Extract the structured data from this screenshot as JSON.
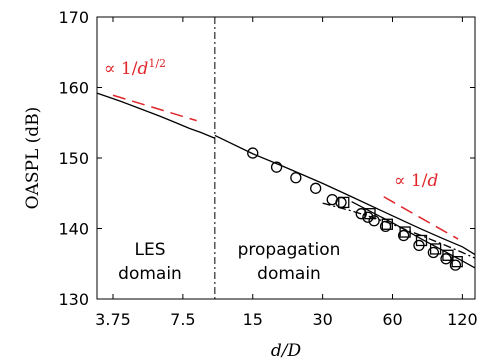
{
  "chart_data": {
    "type": "scatter",
    "xscale": "log",
    "xlabel": "d/D",
    "ylabel": "OASPL (dB)",
    "xlim": [
      3.2,
      136
    ],
    "ylim": [
      130,
      170
    ],
    "xticks": [
      3.75,
      7.5,
      15,
      30,
      60,
      120
    ],
    "xtick_labels": [
      "3.75",
      "7.5",
      "15",
      "30",
      "60",
      "120"
    ],
    "yticks": [
      130,
      140,
      150,
      160,
      170
    ],
    "grid": false,
    "divider_x": 10.3,
    "region_labels": {
      "les": [
        "LES",
        "domain"
      ],
      "propagation": [
        "propagation",
        "domain"
      ]
    },
    "annotations": {
      "inverse_sqrt": {
        "prefix": "∝ 1/",
        "base": "d",
        "exponent": "1/2",
        "color": "#e0262b"
      },
      "inverse": {
        "prefix": "∝ 1/",
        "base": "d",
        "color": "#e0262b"
      }
    },
    "series": [
      {
        "kind": "line",
        "style": "solid",
        "color": "#000000",
        "x": [
          3.2,
          4,
          5,
          6,
          7,
          8,
          9,
          10.3
        ],
        "y": [
          159.2,
          158.1,
          156.9,
          155.9,
          155.0,
          154.2,
          153.6,
          152.8
        ]
      },
      {
        "kind": "line",
        "style": "solid",
        "color": "#000000",
        "x": [
          10.3,
          15,
          20,
          30,
          40,
          60,
          80,
          100,
          120,
          136
        ],
        "y": [
          153.2,
          150.6,
          148.9,
          146.4,
          144.5,
          141.8,
          139.9,
          138.5,
          137.4,
          136.3
        ]
      },
      {
        "kind": "line",
        "style": "solid",
        "color": "#000000",
        "x": [
          40,
          60,
          80,
          100,
          120,
          136
        ],
        "y": [
          143.8,
          140.8,
          138.5,
          136.8,
          135.4,
          134.4
        ]
      },
      {
        "kind": "line",
        "style": "dashdot",
        "color": "#000000",
        "x": [
          30,
          40,
          50,
          60,
          70,
          80,
          90,
          100,
          120,
          136
        ],
        "y": [
          143.6,
          142.5,
          141.5,
          140.6,
          139.7,
          139.0,
          138.3,
          137.7,
          136.6,
          135.8
        ]
      },
      {
        "kind": "line",
        "style": "dashed",
        "color": "#e0262b",
        "x": [
          3.75,
          8.6
        ],
        "y": [
          158.9,
          155.3
        ]
      },
      {
        "kind": "line",
        "style": "dashed",
        "color": "#e0262b",
        "x": [
          55,
          115
        ],
        "y": [
          144.5,
          138.5
        ]
      },
      {
        "kind": "marker",
        "marker": "circle",
        "color": "#000000",
        "x": [
          15,
          19,
          23,
          28,
          33,
          36,
          44,
          47,
          50,
          56,
          67,
          78,
          90,
          102,
          112
        ],
        "y": [
          150.7,
          148.7,
          147.2,
          145.7,
          144.1,
          143.7,
          142.1,
          141.6,
          141.1,
          140.3,
          139.0,
          137.6,
          136.6,
          135.7,
          134.8
        ]
      },
      {
        "kind": "marker",
        "marker": "square",
        "color": "#000000",
        "x": [
          37,
          48,
          57,
          68,
          80,
          92,
          104,
          114
        ],
        "y": [
          143.7,
          142.1,
          140.6,
          139.5,
          138.3,
          137.1,
          136.2,
          135.3
        ]
      }
    ]
  }
}
